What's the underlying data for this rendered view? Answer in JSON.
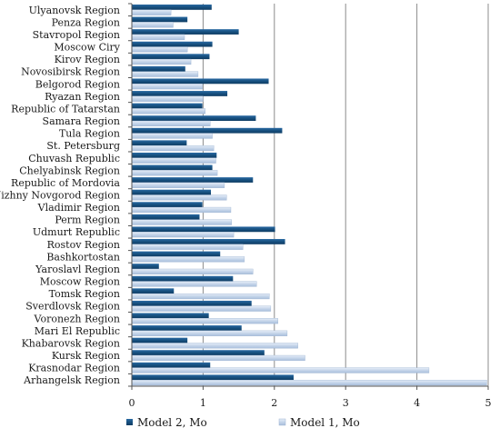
{
  "chart_data": {
    "type": "bar",
    "orientation": "horizontal",
    "categories": [
      "Ulyanovsk Region",
      "Penza Region",
      "Stavropol Region",
      "Moscow Ciry",
      "Kirov Region",
      "Novosibirsk Region",
      "Belgorod Region",
      "Ryazan Region",
      "Republic of Tatarstan",
      "Samara Region",
      "Tula Region",
      "St. Petersburg",
      "Chuvash Republic",
      "Chelyabinsk Region",
      "Republic of Mordovia",
      "Nizhny Novgorod Region",
      "Vladimir Region",
      "Perm Region",
      "Udmurt Republic",
      "Rostov Region",
      "Bashkortostan",
      "Yaroslavl Region",
      "Moscow Region",
      "Tomsk Region",
      "Sverdlovsk Region",
      "Voronezh Region",
      "Mari El Republic",
      "Khabarovsk Region",
      "Kursk Region",
      "Krasnodar Region",
      "Arhangelsk Region"
    ],
    "series": [
      {
        "name": "Model 2, Mo",
        "color": "#17507f",
        "values": [
          1.12,
          0.78,
          1.5,
          1.13,
          1.09,
          0.75,
          1.92,
          1.34,
          0.99,
          1.74,
          2.11,
          0.77,
          1.19,
          1.13,
          1.7,
          1.11,
          0.99,
          0.95,
          2.01,
          2.15,
          1.24,
          0.38,
          1.42,
          0.59,
          1.68,
          1.08,
          1.54,
          0.78,
          1.86,
          1.1,
          2.27
        ]
      },
      {
        "name": "Model 1, Mo",
        "color": "#c5d5ea",
        "values": [
          0.55,
          0.58,
          0.74,
          0.78,
          0.83,
          0.93,
          0.99,
          1.0,
          1.03,
          1.1,
          1.13,
          1.15,
          1.18,
          1.2,
          1.3,
          1.33,
          1.39,
          1.4,
          1.43,
          1.56,
          1.58,
          1.7,
          1.75,
          1.93,
          1.95,
          2.05,
          2.18,
          2.33,
          2.43,
          4.17,
          4.98
        ]
      }
    ],
    "x_ticks": [
      "0",
      "1",
      "2",
      "3",
      "4",
      "5"
    ],
    "xlim": [
      0,
      5
    ],
    "grid": "vertical major gridlines",
    "legend_position": "bottom"
  }
}
